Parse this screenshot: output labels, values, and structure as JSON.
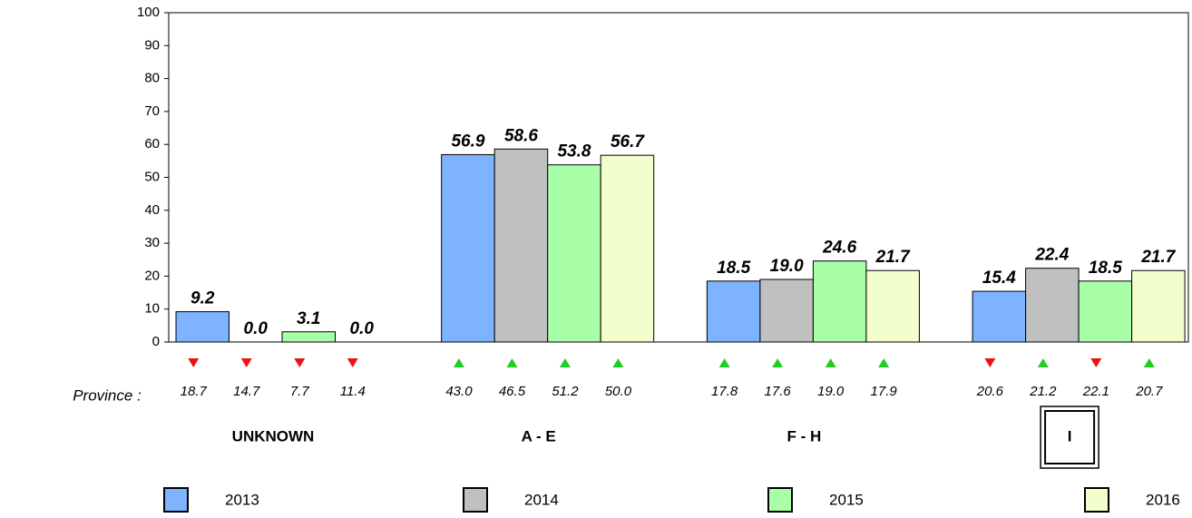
{
  "chart_data": {
    "type": "bar",
    "x_label": "Province :",
    "categories": [
      "UNKNOWN",
      "A - E",
      "F -  H",
      "I"
    ],
    "highlighted_category": 3,
    "ylim": [
      0,
      100
    ],
    "yticks": [
      0,
      10,
      20,
      30,
      40,
      50,
      60,
      70,
      80,
      90,
      100
    ],
    "trend_colors": {
      "up": "#22cc22",
      "down": "#ee1111"
    },
    "series": [
      {
        "name": "2013",
        "color": "#7eb4ff",
        "values": [
          9.2,
          56.9,
          18.5,
          15.4
        ],
        "value_labels": [
          "9.2",
          "56.9",
          "18.5",
          "15.4"
        ],
        "compare_values": [
          18.7,
          43.0,
          17.8,
          20.6
        ],
        "compare_labels": [
          "18.7",
          "43.0",
          "17.8",
          "20.6"
        ],
        "trend": [
          "down",
          "up",
          "up",
          "down"
        ]
      },
      {
        "name": "2014",
        "color": "#c0c0c0",
        "values": [
          0,
          58.6,
          19.0,
          22.4
        ],
        "value_labels": [
          "0.0",
          "58.6",
          "19.0",
          "22.4"
        ],
        "compare_values": [
          14.7,
          46.5,
          17.6,
          21.2
        ],
        "compare_labels": [
          "14.7",
          "46.5",
          "17.6",
          "21.2"
        ],
        "trend": [
          "down",
          "up",
          "up",
          "up"
        ]
      },
      {
        "name": "2015",
        "color": "#a8ffa8",
        "values": [
          3.1,
          53.8,
          24.6,
          18.5
        ],
        "value_labels": [
          "3.1",
          "53.8",
          "24.6",
          "18.5"
        ],
        "compare_values": [
          7.7,
          51.2,
          19.0,
          22.1
        ],
        "compare_labels": [
          "7.7",
          "51.2",
          "19.0",
          "22.1"
        ],
        "trend": [
          "down",
          "up",
          "up",
          "down"
        ]
      },
      {
        "name": "2016",
        "color": "#f2ffcc",
        "values": [
          0,
          56.7,
          21.7,
          21.7
        ],
        "value_labels": [
          "0.0",
          "56.7",
          "21.7",
          "21.7"
        ],
        "compare_values": [
          11.4,
          50.0,
          17.9,
          20.7
        ],
        "compare_labels": [
          "11.4",
          "50.0",
          "17.9",
          "20.7"
        ],
        "trend": [
          "down",
          "up",
          "up",
          "up"
        ]
      }
    ]
  }
}
